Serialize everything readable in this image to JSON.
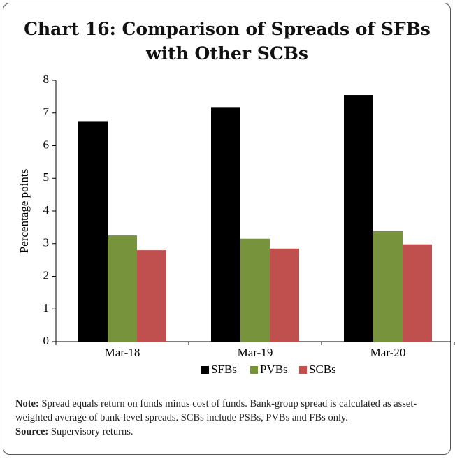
{
  "chart_data": {
    "type": "bar",
    "title": "Chart 16: Comparison of Spreads of SFBs with Other SCBs",
    "y_label": "Percentage points",
    "categories": [
      "Mar-18",
      "Mar-19",
      "Mar-20"
    ],
    "series": [
      {
        "name": "SFBs",
        "color": "#000000",
        "values": [
          6.75,
          7.18,
          7.55
        ]
      },
      {
        "name": "PVBs",
        "color": "#77933c",
        "values": [
          3.25,
          3.15,
          3.38
        ]
      },
      {
        "name": "SCBs",
        "color": "#c0504d",
        "values": [
          2.8,
          2.85,
          2.98
        ]
      }
    ],
    "ylim": [
      0,
      8
    ],
    "yticks": [
      0,
      1,
      2,
      3,
      4,
      5,
      6,
      7,
      8
    ],
    "grid": false,
    "legend": "bottom"
  },
  "notes": {
    "note_label": "Note:",
    "note": "Spread equals return on funds minus cost of funds. Bank-group spread is calculated as asset-weighted average of bank-level spreads. SCBs include PSBs, PVBs and FBs only.",
    "source_label": "Source:",
    "source": "Supervisory returns."
  }
}
